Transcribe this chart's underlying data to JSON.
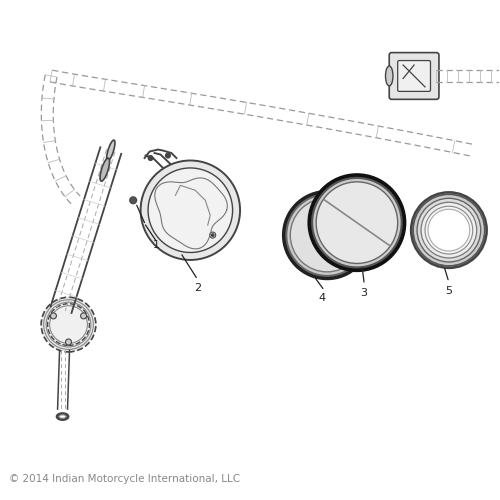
{
  "bg_color": "#ffffff",
  "lc": "#444444",
  "dc": "#222222",
  "gray1": "#bbbbbb",
  "gray2": "#dddddd",
  "gray3": "#eeeeee",
  "copyright_text": "© 2014 Indian Motorcycle International, LLC",
  "copyright_fontsize": 7.5,
  "copyright_color": "#888888",
  "figsize": [
    5.0,
    5.0
  ],
  "dpi": 100,
  "xlim": [
    0,
    10
  ],
  "ylim": [
    0,
    10
  ]
}
